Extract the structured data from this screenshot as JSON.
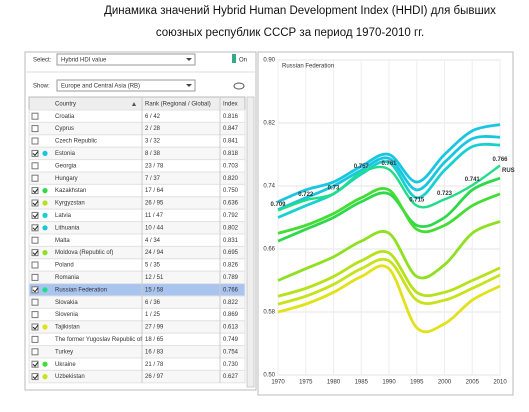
{
  "header": {
    "title_line1": "Динамика значений Hybrid Human Development Index (HHDI) для бывших",
    "title_line2": "союзных республик СССР за период 1970-2010 гг."
  },
  "controls": {
    "select_label": "Select:",
    "select_value": "Hybrid HDI value",
    "toggle": "On",
    "show_label": "Show:",
    "show_value": "Europe and Central Asia (RB)"
  },
  "table": {
    "columns": [
      "Country",
      "Rank (Regional / Global)",
      "Index"
    ],
    "rows": [
      {
        "country": "Croatia",
        "rank": "6 / 42",
        "index": "0.816",
        "checked": false
      },
      {
        "country": "Cyprus",
        "rank": "2 / 28",
        "index": "0.847",
        "checked": false
      },
      {
        "country": "Czech Republic",
        "rank": "3 / 32",
        "index": "0.841",
        "checked": false
      },
      {
        "country": "Estonia",
        "rank": "8 / 38",
        "index": "0.818",
        "checked": true,
        "color": "#19c6e0"
      },
      {
        "country": "Georgia",
        "rank": "23 / 78",
        "index": "0.703",
        "checked": false
      },
      {
        "country": "Hungary",
        "rank": "7 / 37",
        "index": "0.820",
        "checked": false
      },
      {
        "country": "Kazakhstan",
        "rank": "17 / 64",
        "index": "0.750",
        "checked": true,
        "color": "#2ed84a"
      },
      {
        "country": "Kyrgyzstan",
        "rank": "26 / 95",
        "index": "0.636",
        "checked": true,
        "color": "#b6e21c"
      },
      {
        "country": "Latvia",
        "rank": "11 / 47",
        "index": "0.792",
        "checked": true,
        "color": "#19d0d0"
      },
      {
        "country": "Lithuania",
        "rank": "10 / 44",
        "index": "0.802",
        "checked": true,
        "color": "#19c6e0"
      },
      {
        "country": "Malta",
        "rank": "4 / 34",
        "index": "0.831",
        "checked": false
      },
      {
        "country": "Moldova (Republic of)",
        "rank": "24 / 94",
        "index": "0.695",
        "checked": true,
        "color": "#8ee020"
      },
      {
        "country": "Poland",
        "rank": "5 / 35",
        "index": "0.826",
        "checked": false
      },
      {
        "country": "Romania",
        "rank": "12 / 51",
        "index": "0.789",
        "checked": false
      },
      {
        "country": "Russian Federation",
        "rank": "15 / 58",
        "index": "0.766",
        "checked": true,
        "color": "#22dd88",
        "selected": true
      },
      {
        "country": "Slovakia",
        "rank": "6 / 36",
        "index": "0.822",
        "checked": false
      },
      {
        "country": "Slovenia",
        "rank": "1 / 25",
        "index": "0.869",
        "checked": false
      },
      {
        "country": "Tajikistan",
        "rank": "27 / 99",
        "index": "0.613",
        "checked": true,
        "color": "#e2e21c"
      },
      {
        "country": "The former Yugoslav Republic of",
        "rank": "18 / 65",
        "index": "0.749",
        "checked": false
      },
      {
        "country": "Turkey",
        "rank": "16 / 83",
        "index": "0.754",
        "checked": false
      },
      {
        "country": "Ukraine",
        "rank": "21 / 78",
        "index": "0.730",
        "checked": true,
        "color": "#44dd33"
      },
      {
        "country": "Uzbekistan",
        "rank": "26 / 97",
        "index": "0.627",
        "checked": true,
        "color": "#c8e21c"
      }
    ]
  },
  "chart": {
    "type": "line",
    "annotation": "Russian Federation",
    "x": [
      1970,
      1975,
      1980,
      1985,
      1990,
      1995,
      2000,
      2005,
      2010
    ],
    "xlim": [
      1970,
      2010
    ],
    "xticks": [
      1970,
      1975,
      1980,
      1985,
      1990,
      1995,
      2000,
      2005,
      2010
    ],
    "ylim": [
      0.5,
      0.9
    ],
    "yticks": [
      {
        "value": 0.5,
        "label": "0.50"
      },
      0.58,
      0.66,
      0.74,
      0.82,
      {
        "value": 0.9,
        "label": "0.90"
      }
    ],
    "grid": true,
    "series": [
      {
        "color": "#19c6e0",
        "values": [
          0.72,
          0.735,
          0.745,
          0.765,
          0.78,
          0.745,
          0.78,
          0.81,
          0.818
        ]
      },
      {
        "color": "#19c6e0",
        "values": [
          0.71,
          0.725,
          0.74,
          0.76,
          0.775,
          0.735,
          0.77,
          0.8,
          0.802
        ]
      },
      {
        "color": "#19d0d0",
        "values": [
          0.7,
          0.715,
          0.73,
          0.755,
          0.77,
          0.725,
          0.76,
          0.79,
          0.792
        ]
      },
      {
        "color": "#2ed84a",
        "values": [
          0.67,
          0.685,
          0.7,
          0.72,
          0.73,
          0.69,
          0.7,
          0.735,
          0.75
        ]
      },
      {
        "color": "#44dd33",
        "values": [
          0.68,
          0.69,
          0.705,
          0.725,
          0.735,
          0.685,
          0.69,
          0.715,
          0.73
        ]
      },
      {
        "color": "#8ee020",
        "values": [
          0.62,
          0.635,
          0.65,
          0.67,
          0.68,
          0.625,
          0.64,
          0.68,
          0.695
        ]
      },
      {
        "color": "#b6e21c",
        "values": [
          0.6,
          0.61,
          0.625,
          0.645,
          0.655,
          0.605,
          0.605,
          0.62,
          0.636
        ]
      },
      {
        "color": "#c8e21c",
        "values": [
          0.59,
          0.6,
          0.615,
          0.635,
          0.645,
          0.595,
          0.595,
          0.61,
          0.627
        ]
      },
      {
        "color": "#e2e21c",
        "values": [
          0.58,
          0.59,
          0.605,
          0.625,
          0.635,
          0.56,
          0.565,
          0.595,
          0.613
        ]
      },
      {
        "name": "Russian Federation",
        "label": "RUS",
        "color": "#22dd88",
        "data_labels": true,
        "values": [
          0.709,
          0.722,
          0.73,
          0.757,
          0.761,
          0.715,
          0.723,
          0.741,
          0.766
        ]
      }
    ]
  }
}
